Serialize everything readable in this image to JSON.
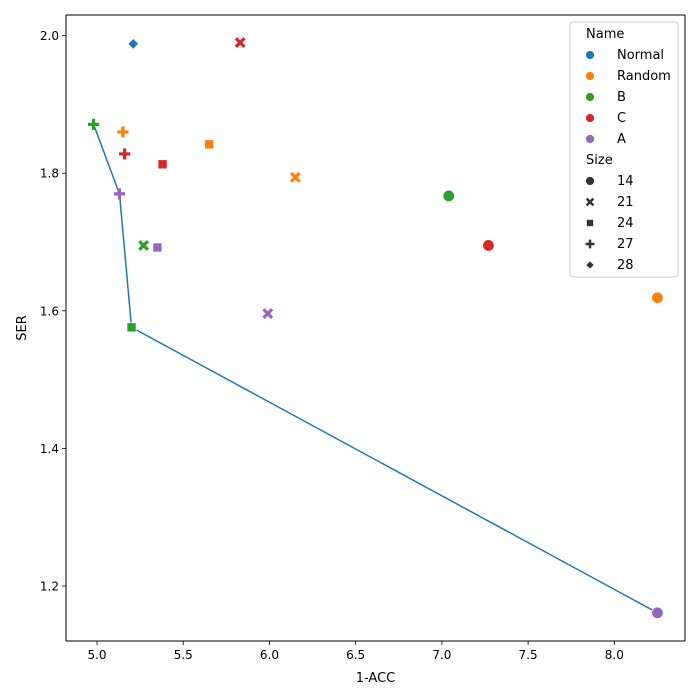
{
  "chart_data": {
    "type": "scatter",
    "xlabel": "1-ACC",
    "ylabel": "SER",
    "xlim": [
      4.82,
      8.41
    ],
    "ylim": [
      1.12,
      2.03
    ],
    "xticks": [
      "5.0",
      "5.5",
      "6.0",
      "6.5",
      "7.0",
      "7.5",
      "8.0"
    ],
    "yticks": [
      "1.2",
      "1.4",
      "1.6",
      "1.8",
      "2.0"
    ],
    "legend": {
      "position": "top-right",
      "hue_title": "Name",
      "size_title": "Size",
      "names": [
        {
          "label": "Normal",
          "color": "#1f77b4"
        },
        {
          "label": "Random",
          "color": "#ff7f0e"
        },
        {
          "label": "B",
          "color": "#2ca02c"
        },
        {
          "label": "C",
          "color": "#d62728"
        },
        {
          "label": "A",
          "color": "#9467bd"
        }
      ],
      "sizes": [
        {
          "label": "14",
          "marker": "circle"
        },
        {
          "label": "21",
          "marker": "x"
        },
        {
          "label": "24",
          "marker": "square"
        },
        {
          "label": "27",
          "marker": "plus"
        },
        {
          "label": "28",
          "marker": "diamond"
        }
      ]
    },
    "points": [
      {
        "name": "Normal",
        "size": "28",
        "x": 5.21,
        "y": 1.988
      },
      {
        "name": "Random",
        "size": "14",
        "x": 8.25,
        "y": 1.619
      },
      {
        "name": "Random",
        "size": "21",
        "x": 6.15,
        "y": 1.794
      },
      {
        "name": "Random",
        "size": "24",
        "x": 5.65,
        "y": 1.842
      },
      {
        "name": "Random",
        "size": "27",
        "x": 5.15,
        "y": 1.86
      },
      {
        "name": "B",
        "size": "14",
        "x": 7.04,
        "y": 1.767
      },
      {
        "name": "B",
        "size": "21",
        "x": 5.27,
        "y": 1.695
      },
      {
        "name": "B",
        "size": "24",
        "x": 5.2,
        "y": 1.576
      },
      {
        "name": "B",
        "size": "27",
        "x": 4.98,
        "y": 1.871
      },
      {
        "name": "C",
        "size": "14",
        "x": 7.27,
        "y": 1.695
      },
      {
        "name": "C",
        "size": "21",
        "x": 5.83,
        "y": 1.99
      },
      {
        "name": "C",
        "size": "24",
        "x": 5.38,
        "y": 1.813
      },
      {
        "name": "C",
        "size": "27",
        "x": 5.16,
        "y": 1.828
      },
      {
        "name": "A",
        "size": "14",
        "x": 8.25,
        "y": 1.161
      },
      {
        "name": "A",
        "size": "21",
        "x": 5.99,
        "y": 1.596
      },
      {
        "name": "A",
        "size": "24",
        "x": 5.35,
        "y": 1.692
      },
      {
        "name": "A",
        "size": "27",
        "x": 5.13,
        "y": 1.77
      }
    ],
    "frontier": {
      "color": "#1f77b4",
      "x": [
        4.98,
        5.13,
        5.2,
        8.25
      ],
      "y": [
        1.871,
        1.77,
        1.576,
        1.161
      ]
    }
  }
}
